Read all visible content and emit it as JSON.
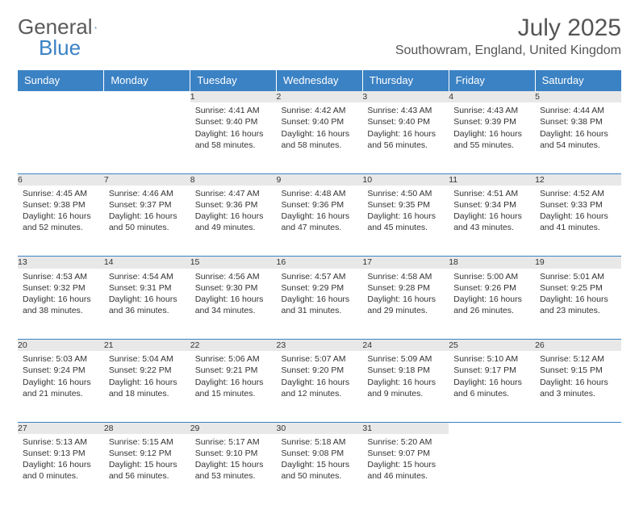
{
  "logo": {
    "text1": "General",
    "text2": "Blue"
  },
  "title": "July 2025",
  "location": "Southowram, England, United Kingdom",
  "colors": {
    "header_bg": "#3b82c4",
    "header_fg": "#ffffff",
    "daynum_bg": "#e8e8e8",
    "border": "#3b82c4",
    "text": "#333333",
    "logo_gray": "#5a5a5a",
    "logo_blue": "#3b82c4"
  },
  "typography": {
    "title_fontsize": 30,
    "location_fontsize": 16,
    "dayheader_fontsize": 13,
    "daynum_fontsize": 12,
    "body_fontsize": 10.5
  },
  "day_headers": [
    "Sunday",
    "Monday",
    "Tuesday",
    "Wednesday",
    "Thursday",
    "Friday",
    "Saturday"
  ],
  "weeks": [
    [
      null,
      null,
      {
        "n": "1",
        "sr": "4:41 AM",
        "ss": "9:40 PM",
        "dl": "16 hours and 58 minutes."
      },
      {
        "n": "2",
        "sr": "4:42 AM",
        "ss": "9:40 PM",
        "dl": "16 hours and 58 minutes."
      },
      {
        "n": "3",
        "sr": "4:43 AM",
        "ss": "9:40 PM",
        "dl": "16 hours and 56 minutes."
      },
      {
        "n": "4",
        "sr": "4:43 AM",
        "ss": "9:39 PM",
        "dl": "16 hours and 55 minutes."
      },
      {
        "n": "5",
        "sr": "4:44 AM",
        "ss": "9:38 PM",
        "dl": "16 hours and 54 minutes."
      }
    ],
    [
      {
        "n": "6",
        "sr": "4:45 AM",
        "ss": "9:38 PM",
        "dl": "16 hours and 52 minutes."
      },
      {
        "n": "7",
        "sr": "4:46 AM",
        "ss": "9:37 PM",
        "dl": "16 hours and 50 minutes."
      },
      {
        "n": "8",
        "sr": "4:47 AM",
        "ss": "9:36 PM",
        "dl": "16 hours and 49 minutes."
      },
      {
        "n": "9",
        "sr": "4:48 AM",
        "ss": "9:36 PM",
        "dl": "16 hours and 47 minutes."
      },
      {
        "n": "10",
        "sr": "4:50 AM",
        "ss": "9:35 PM",
        "dl": "16 hours and 45 minutes."
      },
      {
        "n": "11",
        "sr": "4:51 AM",
        "ss": "9:34 PM",
        "dl": "16 hours and 43 minutes."
      },
      {
        "n": "12",
        "sr": "4:52 AM",
        "ss": "9:33 PM",
        "dl": "16 hours and 41 minutes."
      }
    ],
    [
      {
        "n": "13",
        "sr": "4:53 AM",
        "ss": "9:32 PM",
        "dl": "16 hours and 38 minutes."
      },
      {
        "n": "14",
        "sr": "4:54 AM",
        "ss": "9:31 PM",
        "dl": "16 hours and 36 minutes."
      },
      {
        "n": "15",
        "sr": "4:56 AM",
        "ss": "9:30 PM",
        "dl": "16 hours and 34 minutes."
      },
      {
        "n": "16",
        "sr": "4:57 AM",
        "ss": "9:29 PM",
        "dl": "16 hours and 31 minutes."
      },
      {
        "n": "17",
        "sr": "4:58 AM",
        "ss": "9:28 PM",
        "dl": "16 hours and 29 minutes."
      },
      {
        "n": "18",
        "sr": "5:00 AM",
        "ss": "9:26 PM",
        "dl": "16 hours and 26 minutes."
      },
      {
        "n": "19",
        "sr": "5:01 AM",
        "ss": "9:25 PM",
        "dl": "16 hours and 23 minutes."
      }
    ],
    [
      {
        "n": "20",
        "sr": "5:03 AM",
        "ss": "9:24 PM",
        "dl": "16 hours and 21 minutes."
      },
      {
        "n": "21",
        "sr": "5:04 AM",
        "ss": "9:22 PM",
        "dl": "16 hours and 18 minutes."
      },
      {
        "n": "22",
        "sr": "5:06 AM",
        "ss": "9:21 PM",
        "dl": "16 hours and 15 minutes."
      },
      {
        "n": "23",
        "sr": "5:07 AM",
        "ss": "9:20 PM",
        "dl": "16 hours and 12 minutes."
      },
      {
        "n": "24",
        "sr": "5:09 AM",
        "ss": "9:18 PM",
        "dl": "16 hours and 9 minutes."
      },
      {
        "n": "25",
        "sr": "5:10 AM",
        "ss": "9:17 PM",
        "dl": "16 hours and 6 minutes."
      },
      {
        "n": "26",
        "sr": "5:12 AM",
        "ss": "9:15 PM",
        "dl": "16 hours and 3 minutes."
      }
    ],
    [
      {
        "n": "27",
        "sr": "5:13 AM",
        "ss": "9:13 PM",
        "dl": "16 hours and 0 minutes."
      },
      {
        "n": "28",
        "sr": "5:15 AM",
        "ss": "9:12 PM",
        "dl": "15 hours and 56 minutes."
      },
      {
        "n": "29",
        "sr": "5:17 AM",
        "ss": "9:10 PM",
        "dl": "15 hours and 53 minutes."
      },
      {
        "n": "30",
        "sr": "5:18 AM",
        "ss": "9:08 PM",
        "dl": "15 hours and 50 minutes."
      },
      {
        "n": "31",
        "sr": "5:20 AM",
        "ss": "9:07 PM",
        "dl": "15 hours and 46 minutes."
      },
      null,
      null
    ]
  ],
  "labels": {
    "sunrise": "Sunrise:",
    "sunset": "Sunset:",
    "daylight": "Daylight:"
  }
}
